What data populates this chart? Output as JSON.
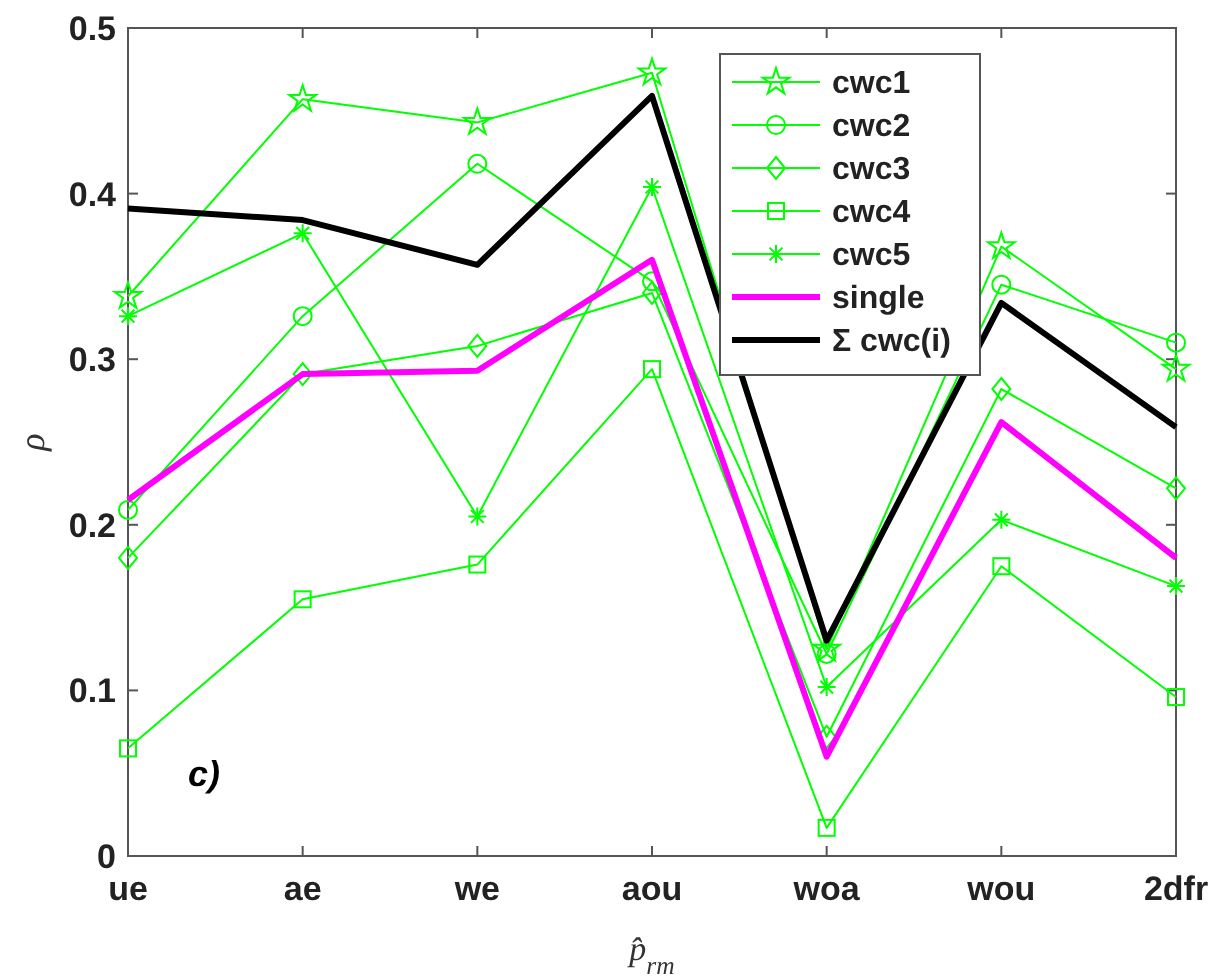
{
  "chart_data": {
    "type": "line",
    "xlabel": "p̂$_{rm}$",
    "ylabel": "ρ",
    "categories": [
      "ue",
      "ae",
      "we",
      "aou",
      "woa",
      "wou",
      "2dfr"
    ],
    "ylim": [
      0,
      0.5
    ],
    "yticks": [
      0,
      0.1,
      0.2,
      0.3,
      0.4,
      0.5
    ],
    "grid": false,
    "legend": "top right",
    "annotations": [
      "c)"
    ],
    "series": [
      {
        "name": "cwc1",
        "color": "#00ff00",
        "marker": "star",
        "values": [
          0.338,
          0.457,
          0.443,
          0.473,
          0.125,
          0.368,
          0.294
        ]
      },
      {
        "name": "cwc2",
        "color": "#00ff00",
        "marker": "circle",
        "values": [
          0.209,
          0.326,
          0.418,
          0.347,
          0.122,
          0.345,
          0.31
        ]
      },
      {
        "name": "cwc3",
        "color": "#00ff00",
        "marker": "diamond",
        "values": [
          0.18,
          0.291,
          0.308,
          0.34,
          0.072,
          0.282,
          0.222
        ]
      },
      {
        "name": "cwc4",
        "color": "#00ff00",
        "marker": "square",
        "values": [
          0.065,
          0.155,
          0.176,
          0.294,
          0.017,
          0.175,
          0.096
        ]
      },
      {
        "name": "cwc5",
        "color": "#00ff00",
        "marker": "cross",
        "values": [
          0.326,
          0.376,
          0.205,
          0.404,
          0.102,
          0.203,
          0.163
        ]
      },
      {
        "name": "single",
        "color": "#ff00ff",
        "marker": "none",
        "values": [
          0.215,
          0.291,
          0.293,
          0.36,
          0.06,
          0.262,
          0.18
        ]
      },
      {
        "name": "Σ cwc(i)",
        "color": "#000000",
        "marker": "none",
        "values": [
          0.391,
          0.384,
          0.357,
          0.459,
          0.13,
          0.334,
          0.259
        ]
      }
    ]
  }
}
